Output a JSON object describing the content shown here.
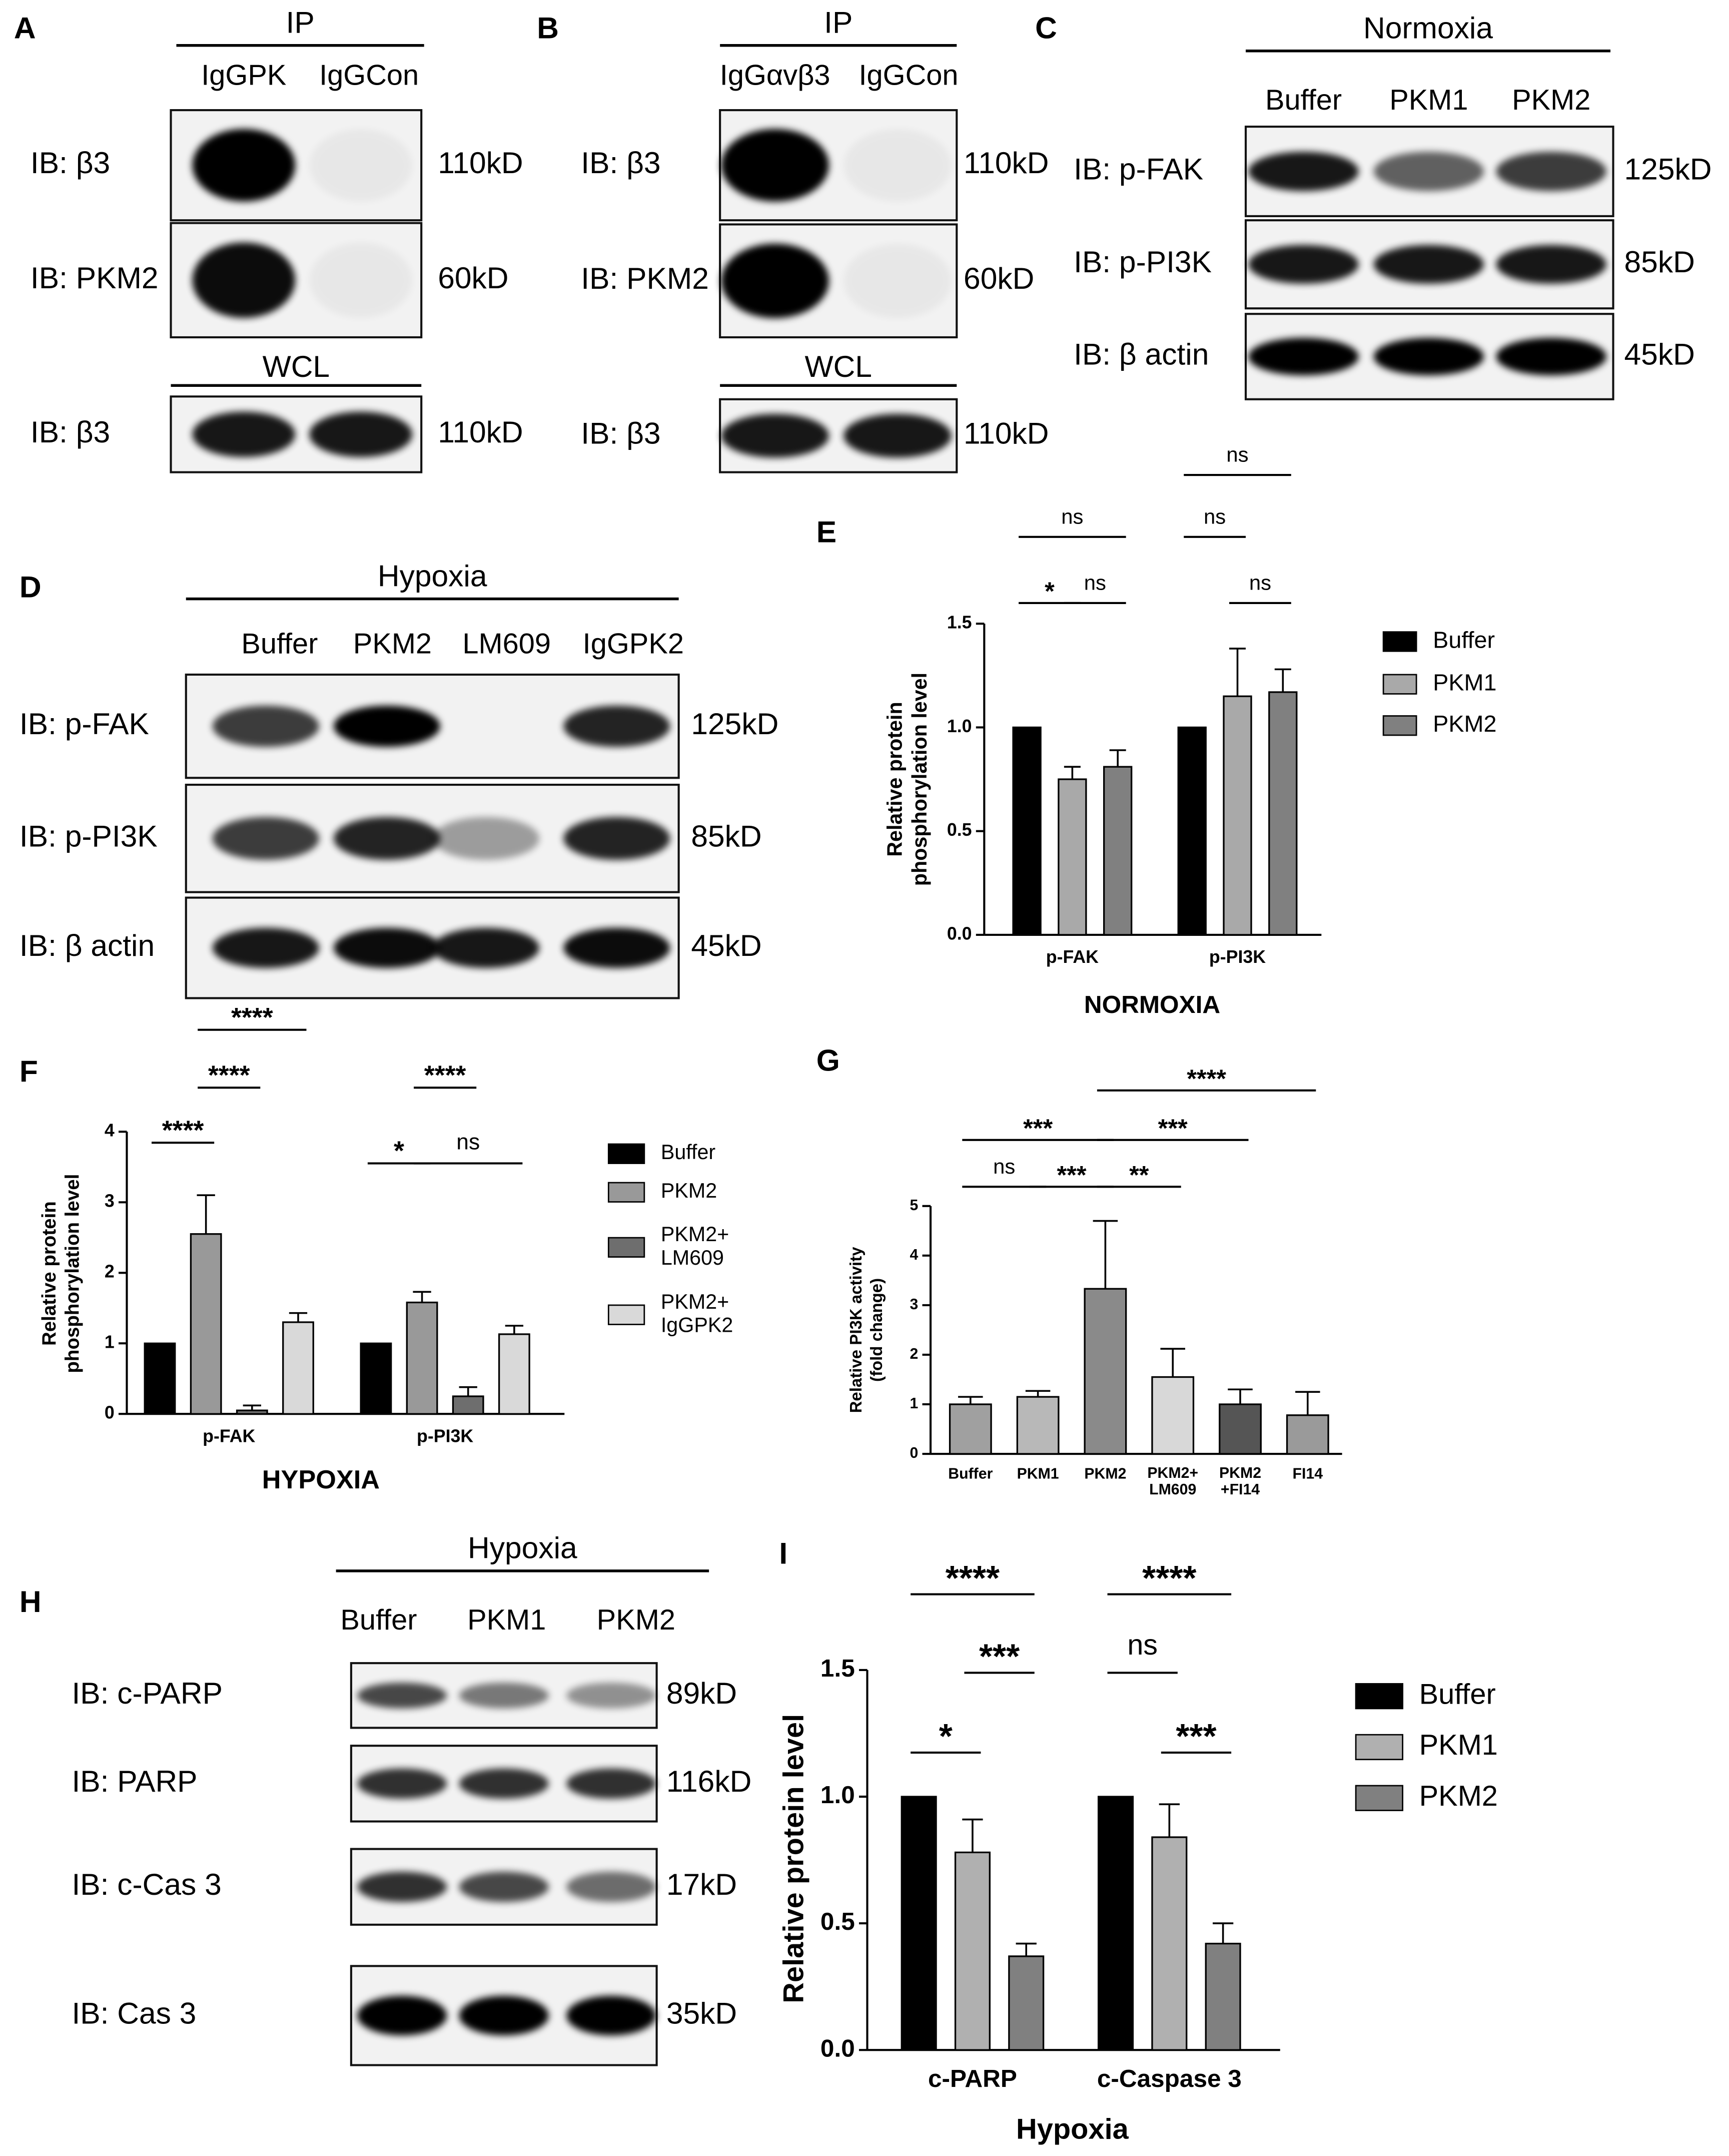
{
  "blots": [
    {
      "label": "A",
      "groups": [
        {
          "header": "IP",
          "lanes": [
            "IgGPK",
            "IgGCon"
          ],
          "rows": [
            {
              "probe": "IB: β3",
              "size": "110kD"
            },
            {
              "probe": "IB: PKM2",
              "size": "60kD"
            }
          ]
        },
        {
          "header": "WCL",
          "rows": [
            {
              "probe": "IB: β3",
              "size": "110kD"
            }
          ]
        }
      ]
    },
    {
      "label": "B",
      "groups": [
        {
          "header": "IP",
          "lanes": [
            "IgGαvβ3",
            "IgGCon"
          ],
          "rows": [
            {
              "probe": "IB: β3",
              "size": "110kD"
            },
            {
              "probe": "IB: PKM2",
              "size": "60kD"
            }
          ]
        },
        {
          "header": "WCL",
          "rows": [
            {
              "probe": "IB: β3",
              "size": "110kD"
            }
          ]
        }
      ]
    },
    {
      "label": "C",
      "groups": [
        {
          "header": "Normoxia",
          "lanes": [
            "Buffer",
            "PKM1",
            "PKM2"
          ],
          "rows": [
            {
              "probe": "IB: p-FAK",
              "size": "125kD"
            },
            {
              "probe": "IB: p-PI3K",
              "size": "85kD"
            },
            {
              "probe": "IB: β actin",
              "size": "45kD"
            }
          ]
        }
      ]
    },
    {
      "label": "D",
      "groups": [
        {
          "header": "Hypoxia",
          "lanes": [
            "Buffer",
            "PKM2",
            "LM609",
            "IgGPK2"
          ],
          "rows": [
            {
              "probe": "IB: p-FAK",
              "size": "125kD"
            },
            {
              "probe": "IB: p-PI3K",
              "size": "85kD"
            },
            {
              "probe": "IB: β actin",
              "size": "45kD"
            }
          ]
        }
      ]
    },
    {
      "label": "H",
      "groups": [
        {
          "header": "Hypoxia",
          "lanes": [
            "Buffer",
            "PKM1",
            "PKM2"
          ],
          "rows": [
            {
              "probe": "IB: c-PARP",
              "size": "89kD"
            },
            {
              "probe": "IB: PARP",
              "size": "116kD"
            },
            {
              "probe": "IB: c-Cas 3",
              "size": "17kD"
            },
            {
              "probe": "IB: Cas 3",
              "size": "35kD"
            }
          ]
        }
      ]
    }
  ],
  "chart_data": [
    {
      "type": "bar",
      "label": "E",
      "y_label": "Relative protein\nphosphorylation level",
      "x_label": "NORMOXIA",
      "categories": [
        "p-FAK",
        "p-PI3K"
      ],
      "series": [
        {
          "name": "Buffer",
          "color": "#000000",
          "values": [
            1,
            1
          ],
          "errors": [
            0,
            0
          ]
        },
        {
          "name": "PKM1",
          "color": "#a9a9a9",
          "values": [
            0.75,
            1.15
          ],
          "errors": [
            0.06,
            0.23
          ]
        },
        {
          "name": "PKM2",
          "color": "#808080",
          "values": [
            0.81,
            1.17
          ],
          "errors": [
            0.08,
            0.11
          ]
        }
      ],
      "ylim": [
        0,
        1.5
      ],
      "yticks": [
        {
          "value": 0,
          "label": "0.0"
        },
        {
          "value": 0.5,
          "label": "0.5"
        },
        {
          "value": 1,
          "label": "1.0"
        },
        {
          "value": 1.5,
          "label": "1.5"
        }
      ],
      "legend": "right",
      "brackets": [
        {
          "label": "*",
          "category": 0,
          "from": 0,
          "to": 1
        },
        {
          "label": "ns",
          "category": 0,
          "from": 1,
          "to": 2
        },
        {
          "label": "ns",
          "category": 0,
          "from": 0,
          "to": 2
        },
        {
          "label": "ns",
          "category": 1,
          "from": 1,
          "to": 2
        },
        {
          "label": "ns",
          "category": 1,
          "from": 0,
          "to": 1
        },
        {
          "label": "ns",
          "category": 1,
          "from": 0,
          "to": 2
        }
      ]
    },
    {
      "type": "bar",
      "label": "F",
      "y_label": "Relative protein\nphosphorylation level",
      "x_label": "HYPOXIA",
      "categories": [
        "p-FAK",
        "p-PI3K"
      ],
      "series": [
        {
          "name": "Buffer",
          "color": "#000000",
          "values": [
            1,
            1
          ],
          "errors": [
            0,
            0
          ]
        },
        {
          "name": "PKM2",
          "color": "#999999",
          "values": [
            2.55,
            1.58
          ],
          "errors": [
            0.55,
            0.15
          ]
        },
        {
          "name": "PKM2+\nLM609",
          "color": "#6e6e6e",
          "values": [
            0.05,
            0.25
          ],
          "errors": [
            0.07,
            0.13
          ]
        },
        {
          "name": "PKM2+\nIgGPK2",
          "color": "#d9d9d9",
          "values": [
            1.3,
            1.13
          ],
          "errors": [
            0.13,
            0.12
          ]
        }
      ],
      "ylim": [
        0,
        4
      ],
      "yticks": [
        0,
        1,
        2,
        3,
        4
      ],
      "legend": "right",
      "brackets": [
        {
          "label": "****",
          "category": 0,
          "from": 0,
          "to": 1
        },
        {
          "label": "****",
          "category": 0,
          "from": 1,
          "to": 2
        },
        {
          "label": "****",
          "category": 0,
          "from": 1,
          "to": 3
        },
        {
          "label": "*",
          "category": 1,
          "from": 0,
          "to": 1
        },
        {
          "label": "ns",
          "category": 1,
          "from": 1,
          "to": 3
        },
        {
          "label": "****",
          "category": 1,
          "from": 1,
          "to": 2
        }
      ]
    },
    {
      "type": "bar",
      "label": "G",
      "y_label": "Relative PI3K activity\n(fold change)",
      "categories": [
        "Buffer",
        "PKM1",
        "PKM2",
        "PKM2+\nLM609",
        "PKM2\n+FI14",
        "FI14"
      ],
      "values": [
        1,
        1.15,
        3.33,
        1.55,
        1,
        0.78
      ],
      "errors": [
        0.15,
        0.12,
        1.37,
        0.57,
        0.3,
        0.47
      ],
      "colors": [
        "#a0a0a0",
        "#b8b8b8",
        "#8a8a8a",
        "#d8d8d8",
        "#555555",
        "#9a9a9a"
      ],
      "ylim": [
        0,
        5
      ],
      "yticks": [
        0,
        1,
        2,
        3,
        4,
        5
      ],
      "brackets": [
        {
          "label": "ns",
          "from": 0,
          "to": 1
        },
        {
          "label": "***",
          "from": 1,
          "to": 2
        },
        {
          "label": "**",
          "from": 2,
          "to": 3
        },
        {
          "label": "***",
          "from": 0,
          "to": 2
        },
        {
          "label": "***",
          "from": 2,
          "to": 4
        },
        {
          "label": "****",
          "from": 2,
          "to": 5
        }
      ]
    },
    {
      "type": "bar",
      "label": "I",
      "y_label": "Relative protein level",
      "x_label": "Hypoxia",
      "categories": [
        "c-PARP",
        "c-Caspase 3"
      ],
      "series": [
        {
          "name": "Buffer",
          "color": "#000000",
          "values": [
            1,
            1
          ],
          "errors": [
            0,
            0
          ]
        },
        {
          "name": "PKM1",
          "color": "#b0b0b0",
          "values": [
            0.78,
            0.84
          ],
          "errors": [
            0.13,
            0.13
          ]
        },
        {
          "name": "PKM2",
          "color": "#808080",
          "values": [
            0.37,
            0.42
          ],
          "errors": [
            0.05,
            0.08
          ]
        }
      ],
      "ylim": [
        0,
        1.5
      ],
      "yticks": [
        {
          "value": 0,
          "label": "0.0"
        },
        {
          "value": 0.5,
          "label": "0.5"
        },
        {
          "value": 1,
          "label": "1.0"
        },
        {
          "value": 1.5,
          "label": "1.5"
        }
      ],
      "legend": "right",
      "brackets": [
        {
          "label": "*",
          "category": 0,
          "from": 0,
          "to": 1
        },
        {
          "label": "***",
          "category": 0,
          "from": 1,
          "to": 2
        },
        {
          "label": "****",
          "category": 0,
          "from": 0,
          "to": 2
        },
        {
          "label": "ns",
          "category": 1,
          "from": 0,
          "to": 1
        },
        {
          "label": "***",
          "category": 1,
          "from": 1,
          "to": 2
        },
        {
          "label": "****",
          "category": 1,
          "from": 0,
          "to": 2
        }
      ]
    }
  ]
}
